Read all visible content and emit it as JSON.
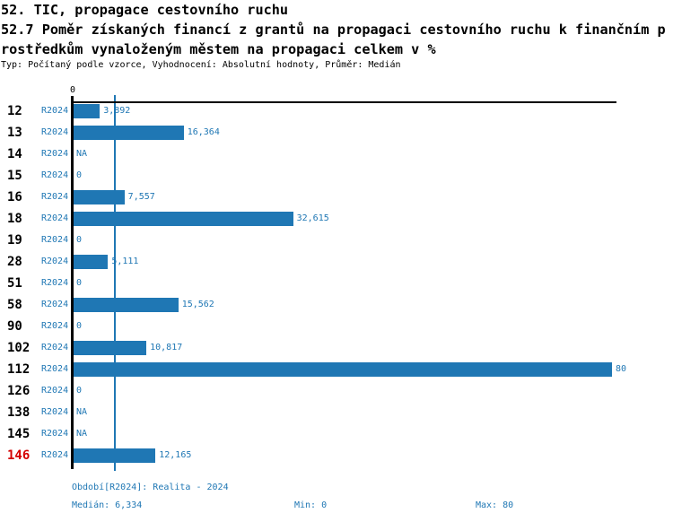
{
  "header": {
    "title_line1": "52. TIC, propagace cestovního ruchu",
    "title_line2": "52.7 Poměr získaných financí z grantů na propagaci cestovního ruchu k finančním p",
    "title_line3": "rostředkům vynaloženým městem na propagaci celkem v %",
    "meta": "Typ: Počítaný podle vzorce, Vyhodnocení: Absolutní hodnoty, Průměr: Medián"
  },
  "chart_data": {
    "type": "bar",
    "orientation": "horizontal",
    "title": "52.7 Poměr získaných financí z grantů na propagaci cestovního ruchu k finančním prostředkům vynaloženým městem na propagaci celkem v %",
    "series_name": "R2024",
    "axis_zero_label": "0",
    "xlim": [
      0,
      80
    ],
    "grid": false,
    "median_value": 6.334,
    "min_value": 0,
    "max_value": 80,
    "colors": {
      "bar": "#1f77b4",
      "blue_text": "#1f77b4",
      "highlight_row": "#d40000",
      "axis": "#000000"
    },
    "rows": [
      {
        "id": "12",
        "period": "R2024",
        "value": 3.892,
        "label": "3,892",
        "highlight": false
      },
      {
        "id": "13",
        "period": "R2024",
        "value": 16.364,
        "label": "16,364",
        "highlight": false
      },
      {
        "id": "14",
        "period": "R2024",
        "value": null,
        "label": "NA",
        "highlight": false
      },
      {
        "id": "15",
        "period": "R2024",
        "value": 0,
        "label": "0",
        "highlight": false
      },
      {
        "id": "16",
        "period": "R2024",
        "value": 7.557,
        "label": "7,557",
        "highlight": false
      },
      {
        "id": "18",
        "period": "R2024",
        "value": 32.615,
        "label": "32,615",
        "highlight": false
      },
      {
        "id": "19",
        "period": "R2024",
        "value": 0,
        "label": "0",
        "highlight": false
      },
      {
        "id": "28",
        "period": "R2024",
        "value": 5.111,
        "label": "5,111",
        "highlight": false
      },
      {
        "id": "51",
        "period": "R2024",
        "value": 0,
        "label": "0",
        "highlight": false
      },
      {
        "id": "58",
        "period": "R2024",
        "value": 15.562,
        "label": "15,562",
        "highlight": false
      },
      {
        "id": "90",
        "period": "R2024",
        "value": 0,
        "label": "0",
        "highlight": false
      },
      {
        "id": "102",
        "period": "R2024",
        "value": 10.817,
        "label": "10,817",
        "highlight": false
      },
      {
        "id": "112",
        "period": "R2024",
        "value": 80,
        "label": "80",
        "highlight": false
      },
      {
        "id": "126",
        "period": "R2024",
        "value": 0,
        "label": "0",
        "highlight": false
      },
      {
        "id": "138",
        "period": "R2024",
        "value": null,
        "label": "NA",
        "highlight": false
      },
      {
        "id": "145",
        "period": "R2024",
        "value": null,
        "label": "NA",
        "highlight": false
      },
      {
        "id": "146",
        "period": "R2024",
        "value": 12.165,
        "label": "12,165",
        "highlight": true
      }
    ]
  },
  "footer": {
    "period_line": "Období[R2024]: Realita - 2024",
    "median_label": "Medián: 6,334",
    "min_label": "Min: 0",
    "max_label": "Max: 80"
  }
}
